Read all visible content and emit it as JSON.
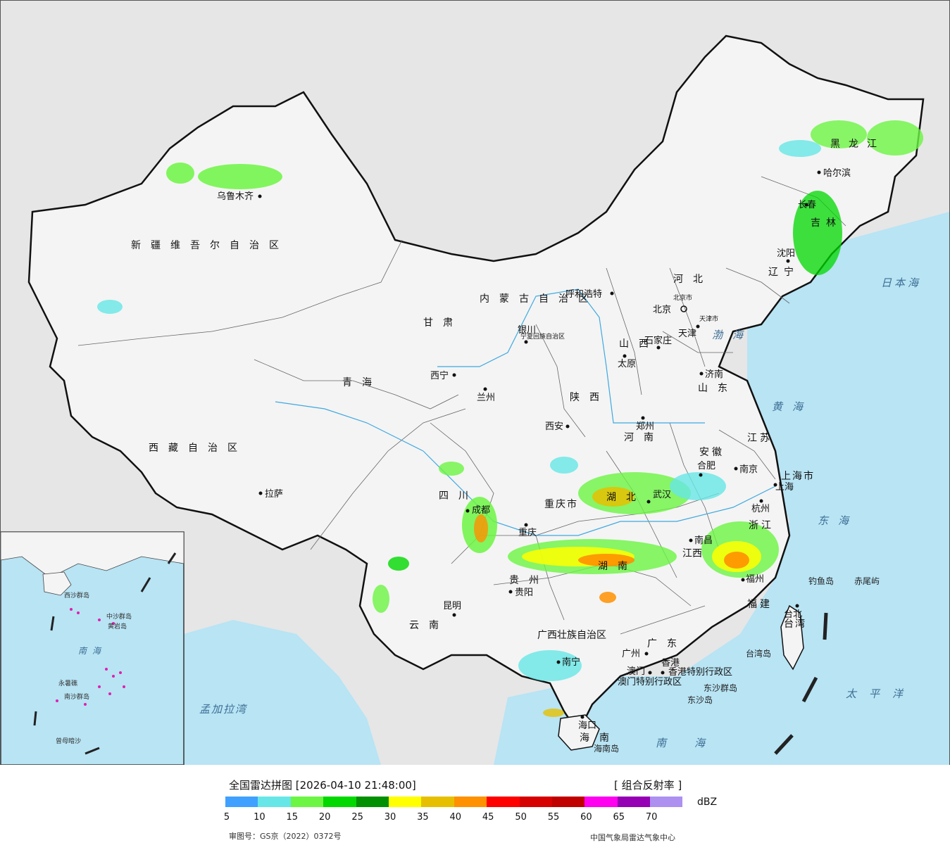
{
  "map": {
    "colors": {
      "land_outside": "#e6e6e6",
      "china_land": "#f4f4f4",
      "sea": "#b8e4f4",
      "border": "#111111",
      "river": "#3fa9e0"
    },
    "cities": [
      {
        "name": "乌鲁木齐"
      },
      {
        "name": "拉萨"
      },
      {
        "name": "西宁"
      },
      {
        "name": "兰州"
      },
      {
        "name": "银川"
      },
      {
        "name": "呼和浩特"
      },
      {
        "name": "北京"
      },
      {
        "name": "天津"
      },
      {
        "name": "石家庄"
      },
      {
        "name": "太原"
      },
      {
        "name": "济南"
      },
      {
        "name": "郑州"
      },
      {
        "name": "西安"
      },
      {
        "name": "成都"
      },
      {
        "name": "重庆"
      },
      {
        "name": "贵阳"
      },
      {
        "name": "昆明"
      },
      {
        "name": "南宁"
      },
      {
        "name": "广州"
      },
      {
        "name": "澳门"
      },
      {
        "name": "香港"
      },
      {
        "name": "海口"
      },
      {
        "name": "合肥"
      },
      {
        "name": "南京"
      },
      {
        "name": "上海"
      },
      {
        "name": "杭州"
      },
      {
        "name": "武汉"
      },
      {
        "name": "南昌"
      },
      {
        "name": "福州"
      },
      {
        "name": "台北"
      },
      {
        "name": "长春"
      },
      {
        "name": "沈阳"
      },
      {
        "name": "哈尔滨"
      }
    ],
    "provinces": [
      {
        "name": "新疆维吾尔自治区"
      },
      {
        "name": "西藏自治区"
      },
      {
        "name": "青海"
      },
      {
        "name": "甘肃"
      },
      {
        "name": "内蒙古自治区"
      },
      {
        "name": "宁夏回族自治区"
      },
      {
        "name": "陕西"
      },
      {
        "name": "山西"
      },
      {
        "name": "河北"
      },
      {
        "name": "河南"
      },
      {
        "name": "山东"
      },
      {
        "name": "四川"
      },
      {
        "name": "重庆市"
      },
      {
        "name": "湖北"
      },
      {
        "name": "湖南"
      },
      {
        "name": "贵州"
      },
      {
        "name": "云南"
      },
      {
        "name": "广西壮族自治区"
      },
      {
        "name": "广东"
      },
      {
        "name": "海南"
      },
      {
        "name": "江西"
      },
      {
        "name": "安徽"
      },
      {
        "name": "江苏"
      },
      {
        "name": "浙江"
      },
      {
        "name": "福建"
      },
      {
        "name": "台湾"
      },
      {
        "name": "上海市"
      },
      {
        "name": "黑龙江"
      },
      {
        "name": "吉林"
      },
      {
        "name": "辽宁"
      },
      {
        "name": "北京市"
      },
      {
        "name": "天津市"
      },
      {
        "name": "香港特别行政区"
      },
      {
        "name": "澳门特别行政区"
      }
    ],
    "seas": [
      {
        "name": "渤海"
      },
      {
        "name": "黄海"
      },
      {
        "name": "东海"
      },
      {
        "name": "南海"
      },
      {
        "name": "日本海"
      },
      {
        "name": "太平洋"
      },
      {
        "name": "孟加拉湾"
      }
    ],
    "islands": [
      {
        "name": "钓鱼岛"
      },
      {
        "name": "赤尾屿"
      },
      {
        "name": "台湾岛"
      },
      {
        "name": "东沙群岛"
      },
      {
        "name": "东沙岛"
      },
      {
        "name": "海南岛"
      }
    ],
    "inset": {
      "sea_name": "南海",
      "labels": [
        "中沙群岛",
        "永暑礁",
        "南沙群岛",
        "曾母暗沙",
        "黄岩岛",
        "西沙群岛"
      ]
    }
  },
  "legend": {
    "title": "全国雷达拼图 [2026-04-10 21:48:00]",
    "product": "[ 组合反射率 ]",
    "unit": "dBZ",
    "colors": [
      "#3fa0ff",
      "#66e6e6",
      "#6cf542",
      "#00d800",
      "#019001",
      "#ffff00",
      "#e6c000",
      "#ff9000",
      "#ff0000",
      "#d60000",
      "#c00000",
      "#ff00f0",
      "#9600b4",
      "#ad90f0"
    ],
    "ticks": [
      "5",
      "10",
      "15",
      "20",
      "25",
      "30",
      "35",
      "40",
      "45",
      "50",
      "55",
      "60",
      "65",
      "70"
    ],
    "approval_no": "审图号：GS京（2022）0372号",
    "producer": "中国气象局雷达气象中心"
  }
}
